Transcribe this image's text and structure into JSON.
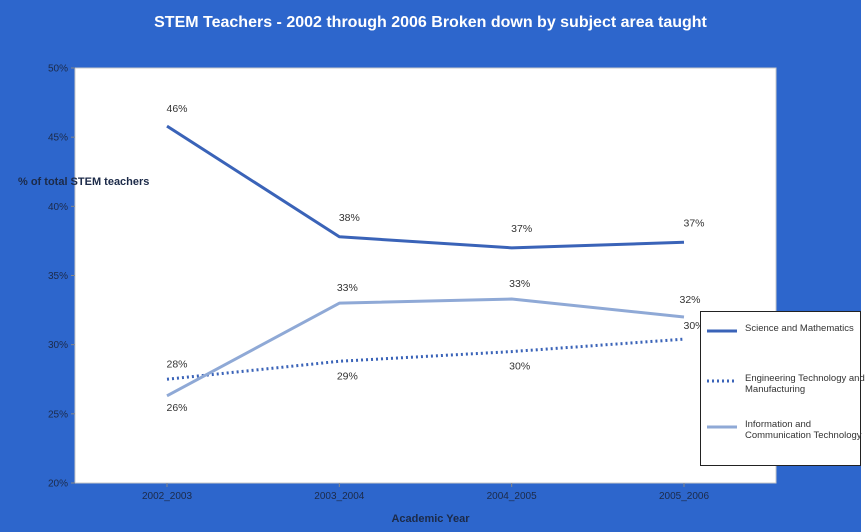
{
  "chart_data": {
    "type": "line",
    "title": "STEM Teachers - 2002 through 2006 Broken down by subject area taught",
    "xlabel": "Academic Year",
    "ylabel": "% of total STEM teachers",
    "categories": [
      "2002_2003",
      "2003_2004",
      "2004_2005",
      "2005_2006"
    ],
    "ylim": [
      20,
      50
    ],
    "yticks": [
      "20%",
      "25%",
      "30%",
      "35%",
      "40%",
      "45%",
      "50%"
    ],
    "grid": false,
    "legend_position": "right",
    "series": [
      {
        "name": "Science and Mathematics",
        "values": [
          45.8,
          37.8,
          37.0,
          37.4
        ],
        "labels": [
          "46%",
          "38%",
          "37%",
          "37%"
        ],
        "color": "#3a63b8",
        "style": "solid"
      },
      {
        "name": "Engineering Technology and Manufacturing",
        "values": [
          27.5,
          28.8,
          29.5,
          30.4
        ],
        "labels": [
          "28%",
          "29%",
          "30%",
          "30%"
        ],
        "color": "#3a63b8",
        "style": "dotted"
      },
      {
        "name": "Information and Communication Technology",
        "values": [
          26.3,
          33.0,
          33.3,
          32.0
        ],
        "labels": [
          "26%",
          "33%",
          "33%",
          "32%"
        ],
        "color": "#8fa9d6",
        "style": "solid"
      }
    ]
  }
}
